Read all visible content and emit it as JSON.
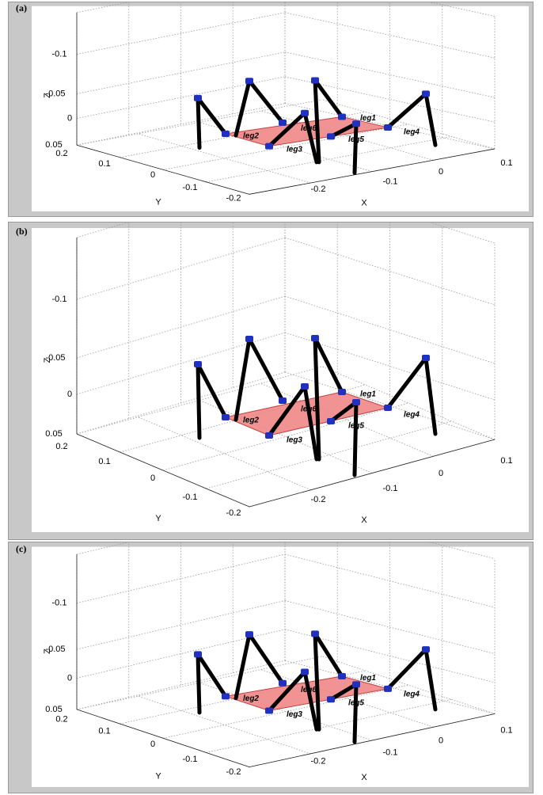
{
  "panels": [
    {
      "label": "(a)",
      "z_label": "Z",
      "y_label": "Y",
      "x_label": "X",
      "z_ticks": [
        "-0.1",
        "-0.05",
        "0",
        "0.05"
      ],
      "y_ticks": [
        "0.2",
        "0.1",
        "0",
        "-0.1",
        "-0.2"
      ],
      "x_ticks": [
        "-0.2",
        "-0.1",
        "0",
        "0.1"
      ],
      "legs": [
        "leg1",
        "leg2",
        "leg3",
        "leg4",
        "leg5",
        "leg6"
      ]
    },
    {
      "label": "(b)",
      "z_label": "Z",
      "y_label": "Y",
      "x_label": "X",
      "z_ticks": [
        "-0.1",
        "-0.05",
        "0",
        "0.05"
      ],
      "y_ticks": [
        "0.2",
        "0.1",
        "0",
        "-0.1",
        "-0.2"
      ],
      "x_ticks": [
        "-0.2",
        "-0.1",
        "0",
        "0.1"
      ],
      "legs": [
        "leg1",
        "leg2",
        "leg3",
        "leg4",
        "leg5",
        "leg6"
      ]
    },
    {
      "label": "(c)",
      "z_label": "Z",
      "y_label": "Y",
      "x_label": "X",
      "z_ticks": [
        "-0.1",
        "-0.05",
        "0",
        "0.05"
      ],
      "y_ticks": [
        "0.2",
        "0.1",
        "0",
        "-0.1",
        "-0.2"
      ],
      "x_ticks": [
        "-0.2",
        "-0.1",
        "0",
        "0.1"
      ],
      "legs": [
        "leg1",
        "leg2",
        "leg3",
        "leg4",
        "leg5",
        "leg6"
      ]
    }
  ]
}
